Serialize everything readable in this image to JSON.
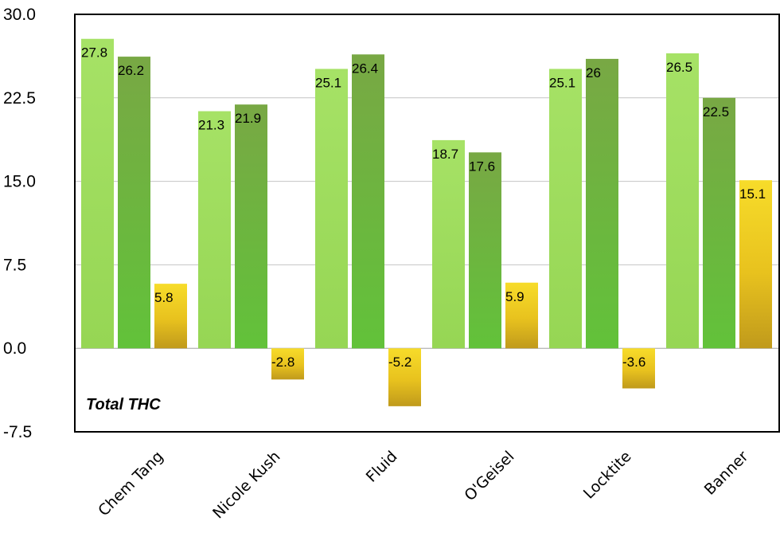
{
  "chart_data": {
    "type": "bar",
    "categories": [
      "Chem Tang",
      "Nicole Kush",
      "Fluid",
      "O'Geisel",
      "Locktite",
      "Banner"
    ],
    "series": [
      {
        "values": [
          27.8,
          21.3,
          25.1,
          18.7,
          25.1,
          26.5
        ],
        "color": "#a3e060"
      },
      {
        "values": [
          26.2,
          21.9,
          26.4,
          17.6,
          26,
          22.5
        ],
        "color": "#72b340"
      },
      {
        "values": [
          5.8,
          -2.8,
          -5.2,
          5.9,
          -3.6,
          15.1
        ],
        "color": "#e8c020"
      }
    ],
    "data_labels": [
      [
        "27.8",
        "21.3",
        "25.1",
        "18.7",
        "25.1",
        "26.5"
      ],
      [
        "26.2",
        "21.9",
        "26.4",
        "17.6",
        "26",
        "22.5"
      ],
      [
        "5.8",
        "-2.8",
        "-5.2",
        "5.9",
        "-3.6",
        "15.1"
      ]
    ],
    "yticks": [
      "30.0",
      "22.5",
      "15.0",
      "7.5",
      "0.0",
      "-7.5"
    ],
    "ylim": [
      -7.5,
      30
    ],
    "grid": true,
    "annotation": "Total THC",
    "title": "",
    "xlabel": "",
    "ylabel": ""
  }
}
